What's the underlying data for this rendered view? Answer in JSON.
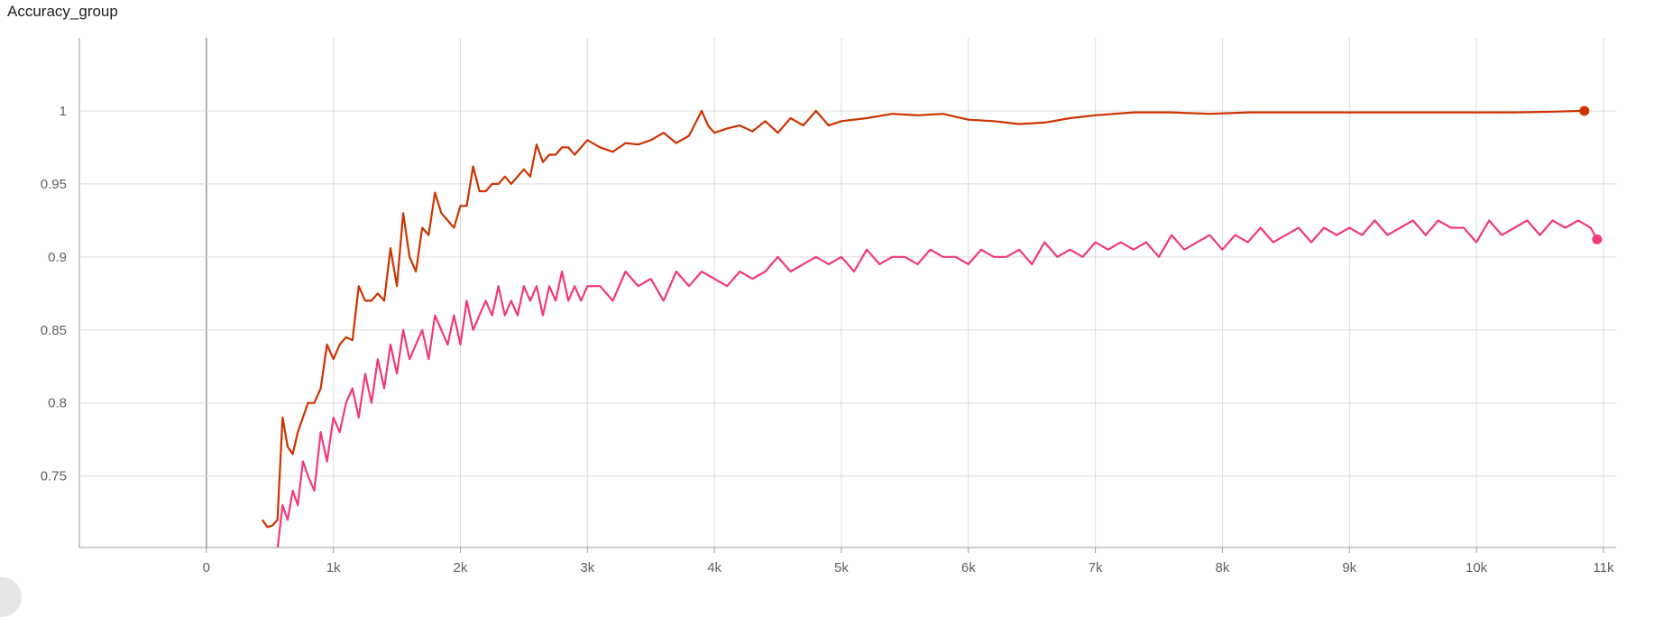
{
  "chart_data": {
    "type": "line",
    "title": "Accuracy_group",
    "xlabel": "",
    "ylabel": "",
    "xlim": [
      -1000,
      11100
    ],
    "ylim": [
      0.701,
      1.05
    ],
    "x_ticks": [
      0,
      1000,
      2000,
      3000,
      4000,
      5000,
      6000,
      7000,
      8000,
      9000,
      10000,
      11000
    ],
    "x_tick_labels": [
      "0",
      "1k",
      "2k",
      "3k",
      "4k",
      "5k",
      "6k",
      "7k",
      "8k",
      "9k",
      "10k",
      "11k"
    ],
    "y_ticks": [
      0.75,
      0.8,
      0.85,
      0.9,
      0.95,
      1
    ],
    "y_tick_labels": [
      "0.75",
      "0.8",
      "0.85",
      "0.9",
      "0.95",
      "1"
    ],
    "grid": true,
    "series": [
      {
        "color": "#cc3300",
        "x": [
          440,
          480,
          520,
          560,
          600,
          640,
          680,
          720,
          760,
          800,
          850,
          900,
          950,
          1000,
          1050,
          1100,
          1150,
          1200,
          1250,
          1300,
          1350,
          1400,
          1450,
          1500,
          1550,
          1600,
          1650,
          1700,
          1750,
          1800,
          1850,
          1900,
          1950,
          2000,
          2050,
          2100,
          2150,
          2200,
          2250,
          2300,
          2350,
          2400,
          2450,
          2500,
          2550,
          2600,
          2650,
          2700,
          2750,
          2800,
          2850,
          2900,
          2950,
          3000,
          3100,
          3200,
          3300,
          3400,
          3500,
          3600,
          3700,
          3800,
          3900,
          3950,
          4000,
          4100,
          4200,
          4300,
          4400,
          4500,
          4600,
          4700,
          4800,
          4900,
          5000,
          5200,
          5400,
          5600,
          5800,
          6000,
          6200,
          6400,
          6600,
          6800,
          7000,
          7300,
          7600,
          7900,
          8200,
          8500,
          8800,
          9100,
          9400,
          9700,
          10000,
          10300,
          10600,
          10850
        ],
        "values": [
          0.72,
          0.715,
          0.716,
          0.72,
          0.79,
          0.77,
          0.765,
          0.78,
          0.79,
          0.8,
          0.8,
          0.81,
          0.84,
          0.83,
          0.84,
          0.845,
          0.843,
          0.88,
          0.87,
          0.87,
          0.875,
          0.87,
          0.906,
          0.88,
          0.93,
          0.9,
          0.89,
          0.92,
          0.915,
          0.944,
          0.93,
          0.925,
          0.92,
          0.935,
          0.935,
          0.962,
          0.945,
          0.945,
          0.95,
          0.95,
          0.955,
          0.95,
          0.955,
          0.96,
          0.955,
          0.977,
          0.965,
          0.97,
          0.97,
          0.975,
          0.975,
          0.97,
          0.975,
          0.98,
          0.975,
          0.972,
          0.978,
          0.977,
          0.98,
          0.985,
          0.978,
          0.983,
          1.0,
          0.99,
          0.985,
          0.988,
          0.99,
          0.986,
          0.993,
          0.985,
          0.995,
          0.99,
          1.0,
          0.99,
          0.993,
          0.995,
          0.998,
          0.997,
          0.998,
          0.994,
          0.993,
          0.991,
          0.992,
          0.995,
          0.997,
          0.999,
          0.999,
          0.998,
          0.999,
          0.999,
          0.999,
          0.999,
          0.999,
          0.999,
          0.999,
          0.999,
          0.9995,
          1.0
        ]
      },
      {
        "color": "#f0397a",
        "x": [
          560,
          600,
          640,
          680,
          720,
          760,
          800,
          850,
          900,
          950,
          1000,
          1050,
          1100,
          1150,
          1200,
          1250,
          1300,
          1350,
          1400,
          1450,
          1500,
          1550,
          1600,
          1650,
          1700,
          1750,
          1800,
          1850,
          1900,
          1950,
          2000,
          2050,
          2100,
          2150,
          2200,
          2250,
          2300,
          2350,
          2400,
          2450,
          2500,
          2550,
          2600,
          2650,
          2700,
          2750,
          2800,
          2850,
          2900,
          2950,
          3000,
          3100,
          3200,
          3300,
          3400,
          3500,
          3600,
          3700,
          3800,
          3900,
          4000,
          4100,
          4200,
          4300,
          4400,
          4500,
          4600,
          4700,
          4800,
          4900,
          5000,
          5100,
          5200,
          5300,
          5400,
          5500,
          5600,
          5700,
          5800,
          5900,
          6000,
          6100,
          6200,
          6300,
          6400,
          6500,
          6600,
          6700,
          6800,
          6900,
          7000,
          7100,
          7200,
          7300,
          7400,
          7500,
          7600,
          7700,
          7800,
          7900,
          8000,
          8100,
          8200,
          8300,
          8400,
          8500,
          8600,
          8700,
          8800,
          8900,
          9000,
          9100,
          9200,
          9300,
          9400,
          9500,
          9600,
          9700,
          9800,
          9900,
          10000,
          10100,
          10200,
          10300,
          10400,
          10500,
          10600,
          10700,
          10800,
          10900,
          10950
        ],
        "values": [
          0.7,
          0.73,
          0.72,
          0.74,
          0.73,
          0.76,
          0.75,
          0.74,
          0.78,
          0.76,
          0.79,
          0.78,
          0.8,
          0.81,
          0.79,
          0.82,
          0.8,
          0.83,
          0.81,
          0.84,
          0.82,
          0.85,
          0.83,
          0.84,
          0.85,
          0.83,
          0.86,
          0.85,
          0.84,
          0.86,
          0.84,
          0.87,
          0.85,
          0.86,
          0.87,
          0.86,
          0.88,
          0.86,
          0.87,
          0.86,
          0.88,
          0.87,
          0.88,
          0.86,
          0.88,
          0.87,
          0.89,
          0.87,
          0.88,
          0.87,
          0.88,
          0.88,
          0.87,
          0.89,
          0.88,
          0.885,
          0.87,
          0.89,
          0.88,
          0.89,
          0.885,
          0.88,
          0.89,
          0.885,
          0.89,
          0.9,
          0.89,
          0.895,
          0.9,
          0.895,
          0.9,
          0.89,
          0.905,
          0.895,
          0.9,
          0.9,
          0.895,
          0.905,
          0.9,
          0.9,
          0.895,
          0.905,
          0.9,
          0.9,
          0.905,
          0.895,
          0.91,
          0.9,
          0.905,
          0.9,
          0.91,
          0.905,
          0.91,
          0.905,
          0.91,
          0.9,
          0.915,
          0.905,
          0.91,
          0.915,
          0.905,
          0.915,
          0.91,
          0.92,
          0.91,
          0.915,
          0.92,
          0.91,
          0.92,
          0.915,
          0.92,
          0.915,
          0.925,
          0.915,
          0.92,
          0.925,
          0.915,
          0.925,
          0.92,
          0.92,
          0.91,
          0.925,
          0.915,
          0.92,
          0.925,
          0.915,
          0.925,
          0.92,
          0.925,
          0.92,
          0.912
        ]
      }
    ]
  }
}
